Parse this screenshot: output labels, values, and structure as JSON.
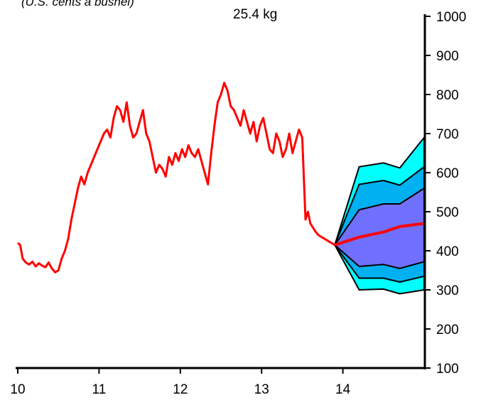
{
  "chart_data": {
    "type": "line",
    "units_note": "(U.S. cents a bushel)",
    "conversion_note": "25.4 kg",
    "x_ticks": [
      "10",
      "11",
      "12",
      "13",
      "14"
    ],
    "y_ticks": [
      "100",
      "200",
      "300",
      "400",
      "500",
      "600",
      "700",
      "800",
      "900",
      "1000"
    ],
    "xlim": [
      10,
      15
    ],
    "ylim": [
      100,
      1000
    ],
    "colors": {
      "history": "#ff0000",
      "projection": "#ff0000",
      "band_outer": "#00ffff",
      "band_middle": "#00b0f0",
      "band_inner": "#7070ff",
      "band_edge": "#000000"
    },
    "series": [
      {
        "x": [
          10.0,
          10.03,
          10.06,
          10.1,
          10.14,
          10.18,
          10.22,
          10.26,
          10.3,
          10.34,
          10.38,
          10.42,
          10.46,
          10.5,
          10.54,
          10.58,
          10.62,
          10.66,
          10.7,
          10.74,
          10.78,
          10.82,
          10.86,
          10.9,
          10.94,
          10.98,
          11.02,
          11.06,
          11.1,
          11.14,
          11.18,
          11.22,
          11.26,
          11.3,
          11.34,
          11.38,
          11.42,
          11.46,
          11.5,
          11.54,
          11.58,
          11.62,
          11.66,
          11.7,
          11.74,
          11.78,
          11.82,
          11.86,
          11.9,
          11.94,
          11.98,
          12.02,
          12.06,
          12.1,
          12.14,
          12.18,
          12.22,
          12.26,
          12.3,
          12.34,
          12.38,
          12.42,
          12.46,
          12.5,
          12.54,
          12.58,
          12.62,
          12.66,
          12.7,
          12.74,
          12.78,
          12.82,
          12.86,
          12.9,
          12.94,
          12.98,
          13.02,
          13.06,
          13.1,
          13.14,
          13.18,
          13.22,
          13.26,
          13.3,
          13.34,
          13.38,
          13.42,
          13.46,
          13.5,
          13.54,
          13.57,
          13.6,
          13.63,
          13.66,
          13.7,
          13.74,
          13.78,
          13.82,
          13.86,
          13.9
        ],
        "values": [
          420,
          415,
          380,
          370,
          365,
          372,
          360,
          368,
          362,
          358,
          370,
          355,
          345,
          350,
          380,
          400,
          430,
          480,
          520,
          560,
          590,
          570,
          600,
          620,
          640,
          660,
          680,
          700,
          710,
          690,
          740,
          770,
          760,
          730,
          780,
          720,
          690,
          700,
          730,
          760,
          700,
          680,
          640,
          600,
          620,
          610,
          590,
          640,
          620,
          650,
          630,
          660,
          640,
          670,
          650,
          640,
          660,
          630,
          600,
          570,
          650,
          720,
          780,
          800,
          830,
          810,
          770,
          760,
          740,
          720,
          760,
          730,
          700,
          730,
          680,
          720,
          740,
          700,
          660,
          650,
          700,
          680,
          640,
          660,
          700,
          650,
          680,
          710,
          690,
          480,
          500,
          470,
          460,
          450,
          440,
          435,
          430,
          425,
          420,
          415
        ]
      },
      {
        "x": [
          13.9,
          14.2,
          14.5,
          14.7,
          15.0
        ],
        "values": [
          415,
          435,
          448,
          462,
          470
        ]
      }
    ],
    "bands": [
      {
        "x": [
          13.9,
          14.2,
          14.5,
          14.7,
          15.0
        ],
        "upper": [
          415,
          615,
          625,
          612,
          690
        ],
        "lower": [
          415,
          300,
          302,
          290,
          300
        ]
      },
      {
        "x": [
          13.9,
          14.2,
          14.5,
          14.7,
          15.0
        ],
        "upper": [
          415,
          570,
          580,
          568,
          615
        ],
        "lower": [
          415,
          330,
          330,
          320,
          335
        ]
      },
      {
        "x": [
          13.9,
          14.2,
          14.5,
          14.7,
          15.0
        ],
        "upper": [
          415,
          505,
          520,
          520,
          560
        ],
        "lower": [
          415,
          360,
          365,
          355,
          372
        ]
      }
    ]
  }
}
